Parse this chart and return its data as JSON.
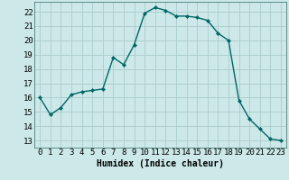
{
  "x": [
    0,
    1,
    2,
    3,
    4,
    5,
    6,
    7,
    8,
    9,
    10,
    11,
    12,
    13,
    14,
    15,
    16,
    17,
    18,
    19,
    20,
    21,
    22,
    23
  ],
  "y": [
    16.0,
    14.8,
    15.3,
    16.2,
    16.4,
    16.5,
    16.6,
    18.8,
    18.3,
    19.7,
    21.9,
    22.3,
    22.1,
    21.7,
    21.7,
    21.6,
    21.4,
    20.5,
    20.0,
    15.8,
    14.5,
    13.8,
    13.1,
    13.0
  ],
  "line_color": "#006666",
  "marker": "D",
  "marker_size": 2.2,
  "bg_color": "#cce8e8",
  "grid_color": "#aacccc",
  "xlabel": "Humidex (Indice chaleur)",
  "yticks": [
    13,
    14,
    15,
    16,
    17,
    18,
    19,
    20,
    21,
    22
  ],
  "xlim": [
    -0.5,
    23.5
  ],
  "ylim": [
    12.5,
    22.7
  ],
  "xlabel_fontsize": 7,
  "tick_fontsize": 6.5,
  "line_width": 1.0
}
